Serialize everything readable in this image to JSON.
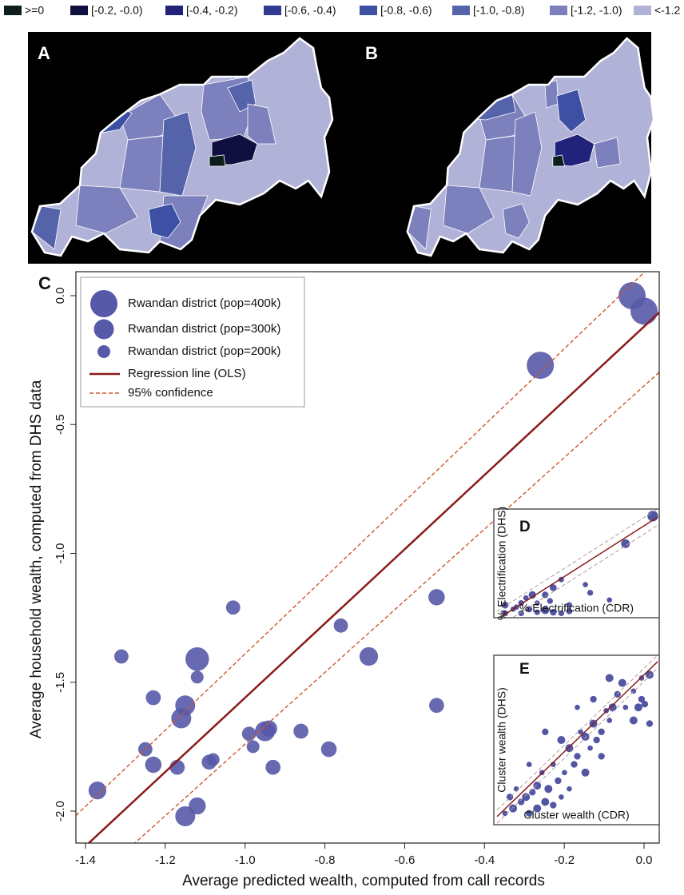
{
  "map_legend": [
    {
      "label": ">=0",
      "color": "#0c1f1d"
    },
    {
      "label": "[-0.2, -0.0)",
      "color": "#101040"
    },
    {
      "label": "[-0.4, -0.2)",
      "color": "#21237a"
    },
    {
      "label": "[-0.6, -0.4)",
      "color": "#2f3c92"
    },
    {
      "label": "[-0.8, -0.6)",
      "color": "#3d50a3"
    },
    {
      "label": "[-1.0, -0.8)",
      "color": "#5563ab"
    },
    {
      "label": "[-1.2, -1.0)",
      "color": "#7c80bd"
    },
    {
      "label": "<-1.2",
      "color": "#b1b2d8"
    }
  ],
  "maps": [
    {
      "label": "A"
    },
    {
      "label": "B"
    }
  ],
  "chart_data": [
    {
      "type": "scatter",
      "label": "C",
      "xlabel": "Average predicted wealth, computed from call records",
      "ylabel": "Average household wealth, computed from DHS data",
      "x": [
        -0.03,
        0.0,
        -0.26,
        -0.52,
        -0.76,
        -1.03,
        -1.31,
        -1.12,
        -0.69,
        -1.12,
        -1.15,
        -1.16,
        -1.23,
        -1.25,
        -1.23,
        -1.17,
        -1.12,
        -1.15,
        -1.37,
        -1.09,
        -1.08,
        -0.99,
        -0.98,
        -0.95,
        -0.94,
        -0.93,
        -0.86,
        -0.79,
        -0.52
      ],
      "y": [
        0.0,
        -0.06,
        -0.27,
        -1.17,
        -1.28,
        -1.21,
        -1.4,
        -1.41,
        -1.4,
        -1.48,
        -1.59,
        -1.64,
        -1.56,
        -1.76,
        -1.82,
        -1.83,
        -1.98,
        -2.02,
        -1.92,
        -1.81,
        -1.8,
        -1.7,
        -1.75,
        -1.69,
        -1.68,
        -1.83,
        -1.69,
        -1.76,
        -1.59
      ],
      "sizes": [
        400,
        400,
        400,
        250,
        220,
        220,
        220,
        350,
        280,
        200,
        300,
        300,
        230,
        220,
        250,
        230,
        260,
        300,
        270,
        230,
        200,
        220,
        200,
        300,
        250,
        230,
        230,
        240,
        230
      ],
      "color": "#5659a8",
      "xlim": [
        -1.424,
        0.038
      ],
      "ylim": [
        -2.124,
        0.093
      ],
      "xticks": [
        -1.4,
        -1.2,
        {
          "value": -1,
          "label": "-1.0"
        },
        -0.8,
        -0.6,
        -0.4,
        -0.2,
        {
          "value": 0,
          "label": "0.0"
        }
      ],
      "yticks": [
        {
          "value": 0,
          "label": "0.0"
        },
        -0.5,
        {
          "value": -1,
          "label": "-1.0"
        },
        -1.5,
        {
          "value": -2,
          "label": "-2.0"
        }
      ],
      "regression": {
        "slope": 1.44,
        "intercept": -0.12,
        "color": "#8b1a1a"
      },
      "confidence": [
        {
          "slope": 1.48,
          "intercept": 0.09
        },
        {
          "slope": 1.39,
          "intercept": -0.35
        }
      ],
      "confidence_color": "#d0562b",
      "legend": [
        {
          "label": "Rwandan district (pop=400k)",
          "size": 400
        },
        {
          "label": "Rwandan district (pop=300k)",
          "size": 300
        },
        {
          "label": "Rwandan district (pop=200k)",
          "size": 200
        },
        {
          "label": "Regression line (OLS)",
          "style": "solid"
        },
        {
          "label": "95% confidence",
          "style": "dashed"
        }
      ]
    },
    {
      "type": "scatter",
      "label": "D",
      "xlabel": "% Electrification (CDR)",
      "ylabel": "% Electrification (DHS)",
      "x": [
        0.97,
        0.8,
        0.55,
        0.58,
        0.35,
        0.3,
        0.33,
        0.25,
        0.2,
        0.1,
        0.05,
        0.05,
        0.15,
        0.25,
        0.3,
        0.35,
        0.4,
        0.45,
        0.22,
        0.18,
        0.15,
        0.12,
        0.4,
        0.7,
        0.45
      ],
      "y": [
        0.97,
        0.7,
        0.3,
        0.22,
        0.27,
        0.2,
        0.14,
        0.12,
        0.06,
        0.06,
        0.1,
        0.02,
        0.02,
        0.03,
        0.05,
        0.03,
        0.02,
        0.04,
        0.2,
        0.17,
        0.12,
        0.08,
        0.35,
        0.15,
        0.1
      ],
      "sizes": [
        400,
        330,
        200,
        220,
        260,
        250,
        220,
        200,
        240,
        200,
        260,
        230,
        220,
        210,
        300,
        250,
        220,
        230,
        280,
        200,
        220,
        200,
        210,
        200,
        220
      ],
      "color": "#3f449a",
      "xlim": [
        0,
        1
      ],
      "ylim": [
        0,
        1
      ],
      "regression": {
        "slope": 1.0,
        "intercept": -0.04,
        "color": "#8b1a1a"
      },
      "confidence": [
        {
          "slope": 1.0,
          "intercept": 0.04
        },
        {
          "slope": 1.0,
          "intercept": -0.12
        }
      ],
      "confidence_color": "#b89a9a"
    },
    {
      "type": "scatter",
      "label": "E",
      "xlabel": "Cluster wealth (CDR)",
      "ylabel": "Cluster wealth (DHS)",
      "x": [
        0.95,
        0.9,
        0.85,
        0.88,
        0.92,
        0.8,
        0.78,
        0.75,
        0.7,
        0.72,
        0.65,
        0.68,
        0.6,
        0.62,
        0.58,
        0.55,
        0.5,
        0.52,
        0.45,
        0.48,
        0.42,
        0.4,
        0.38,
        0.35,
        0.32,
        0.3,
        0.28,
        0.25,
        0.22,
        0.2,
        0.18,
        0.15,
        0.12,
        0.1,
        0.08,
        0.05,
        0.3,
        0.35,
        0.4,
        0.25,
        0.2,
        0.45,
        0.55,
        0.6,
        0.5,
        0.85,
        0.95,
        0.9,
        0.7,
        0.65
      ],
      "y": [
        0.9,
        0.75,
        0.8,
        0.7,
        0.72,
        0.7,
        0.85,
        0.78,
        0.62,
        0.7,
        0.55,
        0.68,
        0.6,
        0.5,
        0.45,
        0.52,
        0.4,
        0.55,
        0.45,
        0.35,
        0.3,
        0.5,
        0.25,
        0.35,
        0.2,
        0.55,
        0.3,
        0.22,
        0.18,
        0.35,
        0.15,
        0.12,
        0.2,
        0.08,
        0.15,
        0.05,
        0.12,
        0.1,
        0.15,
        0.08,
        0.05,
        0.2,
        0.3,
        0.75,
        0.7,
        0.62,
        0.6,
        0.88,
        0.88,
        0.4
      ],
      "sizes": [
        300,
        250,
        200,
        300,
        250,
        200,
        300,
        250,
        200,
        300,
        250,
        200,
        300,
        250,
        200,
        300,
        250,
        200,
        300,
        250,
        200,
        300,
        250,
        200,
        300,
        250,
        200,
        300,
        250,
        200,
        300,
        250,
        200,
        300,
        250,
        200,
        300,
        250,
        200,
        300,
        250,
        200,
        300,
        250,
        200,
        300,
        250,
        200,
        300,
        250
      ],
      "color": "#3f449a",
      "xlim": [
        0,
        1
      ],
      "ylim": [
        0,
        1
      ],
      "regression": {
        "slope": 0.95,
        "intercept": 0.03,
        "color": "#8b1a1a"
      },
      "confidence": [
        {
          "slope": 0.95,
          "intercept": 0.07
        },
        {
          "slope": 0.95,
          "intercept": -0.01
        }
      ],
      "confidence_color": "#b89a9a"
    }
  ]
}
